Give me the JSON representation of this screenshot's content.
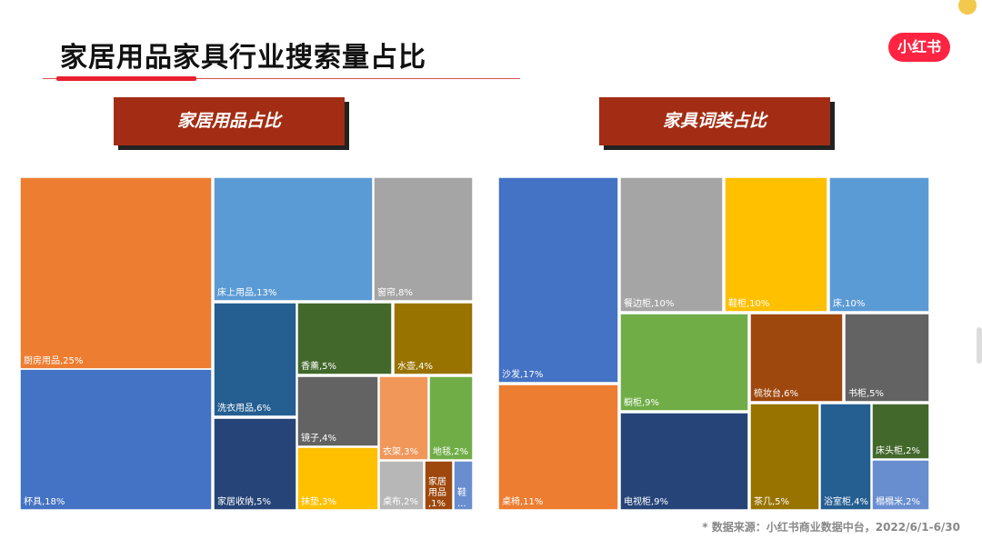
{
  "page": {
    "title": "家居用品家具行业搜索量占比",
    "logo": "小红书",
    "source": "* 数据来源：小红书商业数据中台，2022/6/1-6/30"
  },
  "chart_data": [
    {
      "type": "treemap",
      "title": "家居用品占比",
      "items": [
        {
          "label": "厨房用品",
          "value": 25,
          "color": "#ed7d31",
          "display": "厨房用品,25%"
        },
        {
          "label": "杯具",
          "value": 18,
          "color": "#4472c4",
          "display": "杯具,18%"
        },
        {
          "label": "床上用品",
          "value": 13,
          "color": "#5b9bd5",
          "display": "床上用品,13%"
        },
        {
          "label": "窗帘",
          "value": 8,
          "color": "#a5a5a5",
          "display": "窗帘,8%"
        },
        {
          "label": "洗衣用品",
          "value": 6,
          "color": "#255e91",
          "display": "洗衣用品,6%"
        },
        {
          "label": "家居收纳",
          "value": 5,
          "color": "#264478",
          "display": "家居收纳,5%"
        },
        {
          "label": "香薰",
          "value": 5,
          "color": "#43682b",
          "display": "香薰,5%"
        },
        {
          "label": "水壶",
          "value": 4,
          "color": "#997300",
          "display": "水壶,4%"
        },
        {
          "label": "镜子",
          "value": 4,
          "color": "#636363",
          "display": "镜子,4%"
        },
        {
          "label": "衣架",
          "value": 3,
          "color": "#f1975a",
          "display": "衣架,3%"
        },
        {
          "label": "地毯",
          "value": 2,
          "color": "#70ad47",
          "display": "地毯,2%"
        },
        {
          "label": "抹垫",
          "value": 3,
          "color": "#ffc000",
          "display": "抹垫,3%"
        },
        {
          "label": "桌布",
          "value": 2,
          "color": "#b7b7b7",
          "display": "桌布,2%"
        },
        {
          "label": "家居用品",
          "value": 1,
          "color": "#9e480e",
          "display": "家居用品,1%"
        },
        {
          "label": "鞋",
          "value": 1,
          "color": "#698ed0",
          "display": "鞋..."
        }
      ]
    },
    {
      "type": "treemap",
      "title": "家具词类占比",
      "items": [
        {
          "label": "沙发",
          "value": 17,
          "color": "#4472c4",
          "display": "沙发,17%"
        },
        {
          "label": "桌椅",
          "value": 11,
          "color": "#ed7d31",
          "display": "桌椅,11%"
        },
        {
          "label": "餐边柜",
          "value": 10,
          "color": "#a5a5a5",
          "display": "餐边柜,10%"
        },
        {
          "label": "鞋柜",
          "value": 10,
          "color": "#ffc000",
          "display": "鞋柜,10%"
        },
        {
          "label": "床",
          "value": 10,
          "color": "#5b9bd5",
          "display": "床,10%"
        },
        {
          "label": "橱柜",
          "value": 9,
          "color": "#70ad47",
          "display": "橱柜,9%"
        },
        {
          "label": "电视柜",
          "value": 9,
          "color": "#264478",
          "display": "电视柜,9%"
        },
        {
          "label": "梳妆台",
          "value": 6,
          "color": "#9e480e",
          "display": "梳妆台,6%"
        },
        {
          "label": "书柜",
          "value": 5,
          "color": "#636363",
          "display": "书柜,5%"
        },
        {
          "label": "茶几",
          "value": 5,
          "color": "#997300",
          "display": "茶几,5%"
        },
        {
          "label": "浴室柜",
          "value": 4,
          "color": "#255e91",
          "display": "浴室柜,4%"
        },
        {
          "label": "床头柜",
          "value": 2,
          "color": "#43682b",
          "display": "床头柜,2%"
        },
        {
          "label": "榻榻米",
          "value": 2,
          "color": "#698ed0",
          "display": "榻榻米,2%"
        }
      ]
    }
  ]
}
